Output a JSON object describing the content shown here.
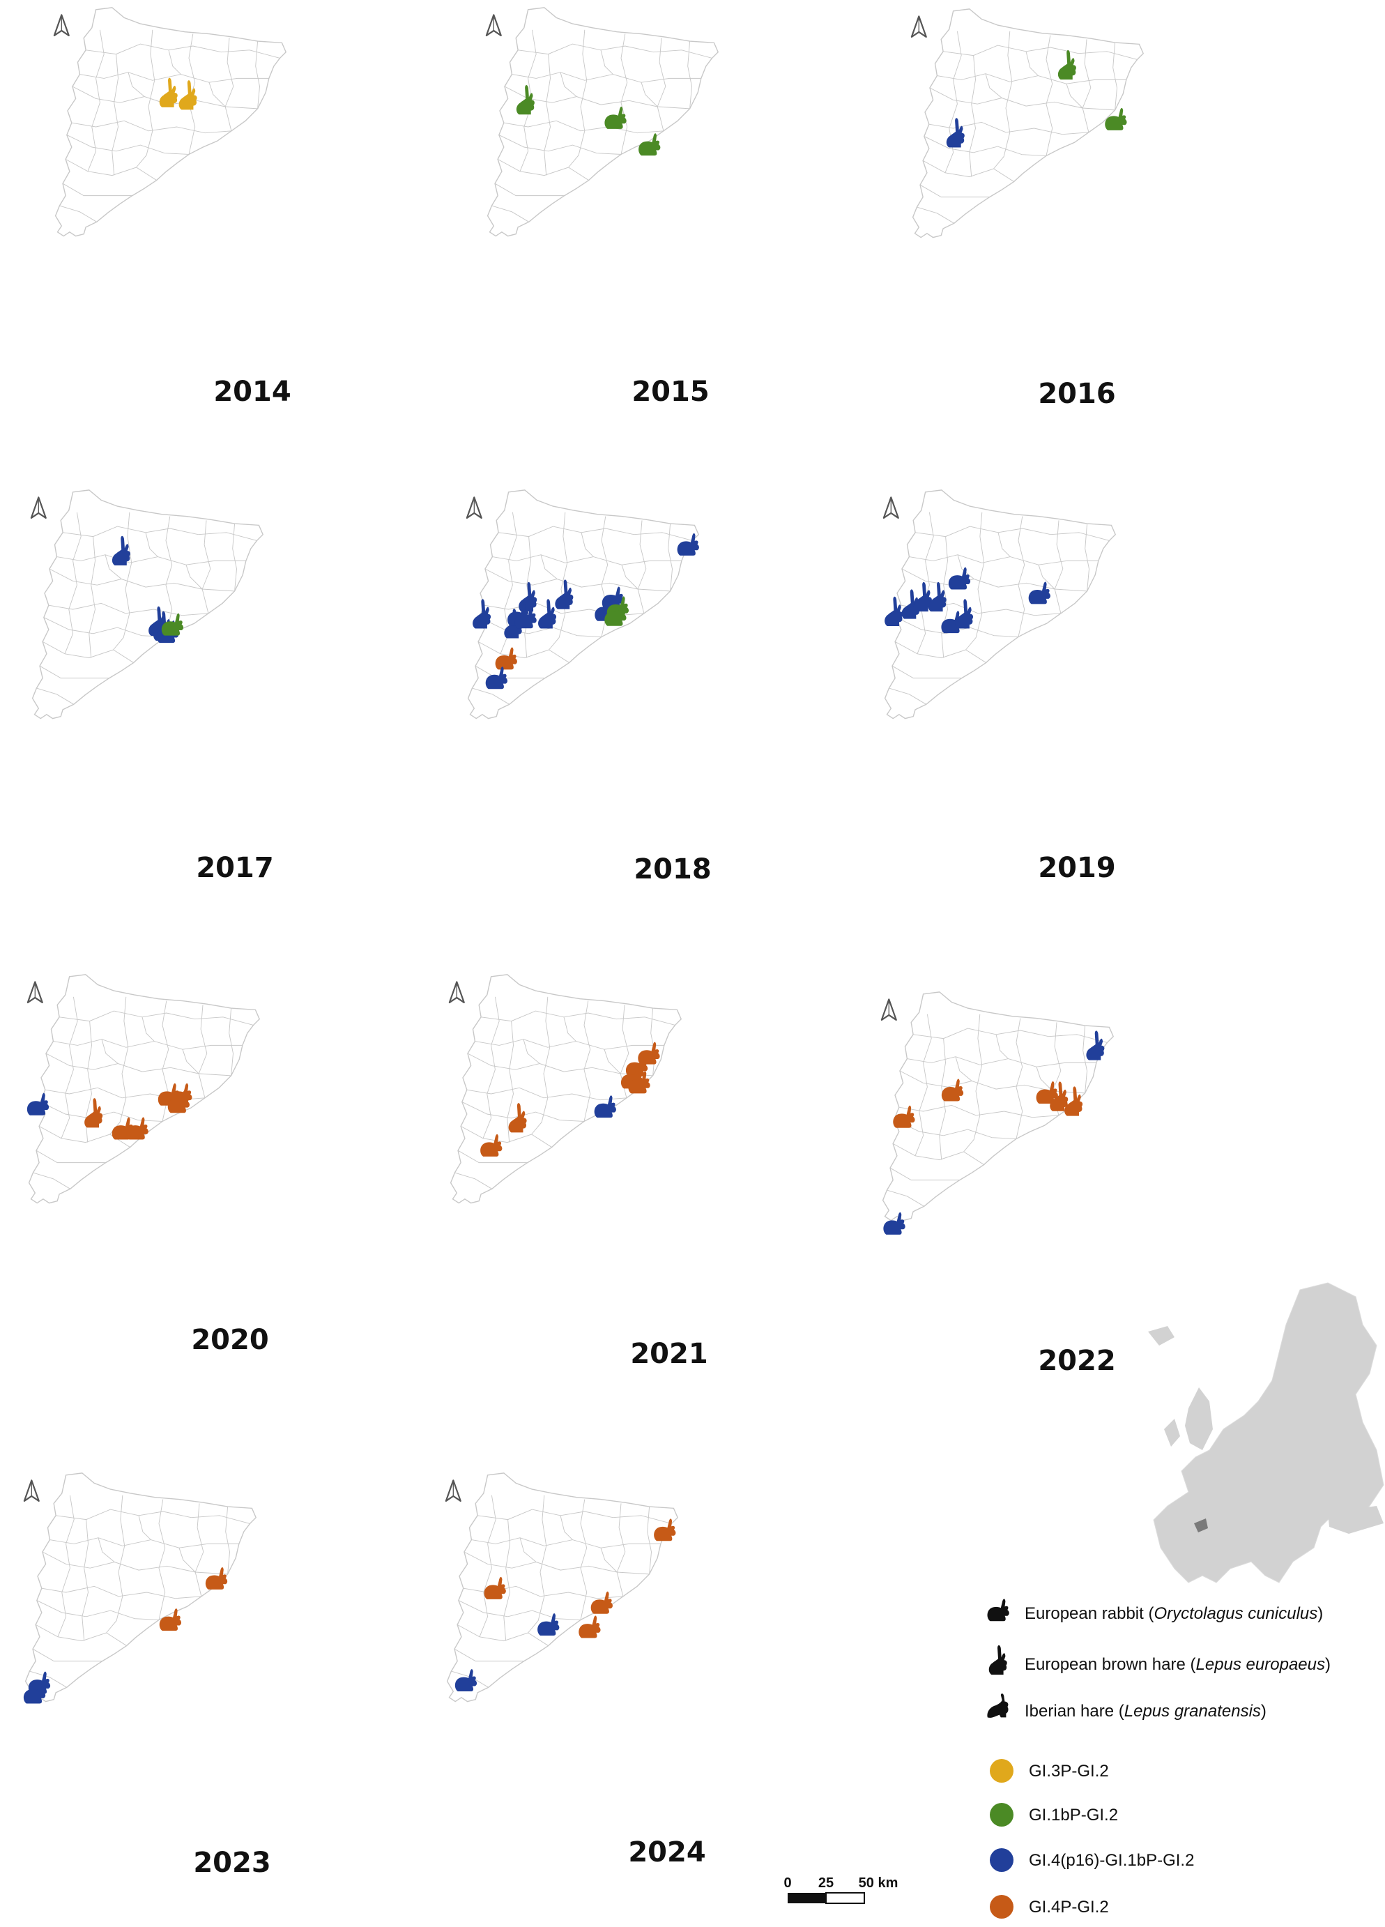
{
  "colors": {
    "yellow": "#e0a81c",
    "green": "#4b8a25",
    "blue": "#213f9a",
    "orange": "#c65a17",
    "outline": "#c8c8c8",
    "europe": "#d2d2d2",
    "highlight": "#7a7a7a"
  },
  "years": [
    "2014",
    "2015",
    "2016",
    "2017",
    "2018",
    "2019",
    "2020",
    "2021",
    "2022",
    "2023",
    "2024"
  ],
  "maps": [
    {
      "year": "2014",
      "markers": [
        {
          "fx": 0.5,
          "fy": 0.37,
          "species": "hare",
          "genotype": "yellow"
        },
        {
          "fx": 0.58,
          "fy": 0.38,
          "species": "hare",
          "genotype": "yellow"
        }
      ]
    },
    {
      "year": "2015",
      "markers": [
        {
          "fx": 0.19,
          "fy": 0.4,
          "species": "hare",
          "genotype": "green"
        },
        {
          "fx": 0.56,
          "fy": 0.47,
          "species": "rabbit",
          "genotype": "green"
        },
        {
          "fx": 0.7,
          "fy": 0.58,
          "species": "rabbit",
          "genotype": "green"
        }
      ]
    },
    {
      "year": "2016",
      "markers": [
        {
          "fx": 0.67,
          "fy": 0.25,
          "species": "hare",
          "genotype": "green"
        },
        {
          "fx": 0.87,
          "fy": 0.47,
          "species": "rabbit",
          "genotype": "green"
        },
        {
          "fx": 0.21,
          "fy": 0.53,
          "species": "hare",
          "genotype": "blue"
        }
      ]
    },
    {
      "year": "2017",
      "markers": [
        {
          "fx": 0.4,
          "fy": 0.27,
          "species": "hare",
          "genotype": "blue"
        },
        {
          "fx": 0.55,
          "fy": 0.56,
          "species": "hare",
          "genotype": "blue"
        },
        {
          "fx": 0.57,
          "fy": 0.58,
          "species": "hare",
          "genotype": "blue"
        },
        {
          "fx": 0.59,
          "fy": 0.6,
          "species": "rabbit",
          "genotype": "blue"
        },
        {
          "fx": 0.61,
          "fy": 0.57,
          "species": "rabbit",
          "genotype": "green"
        }
      ]
    },
    {
      "year": "2018",
      "markers": [
        {
          "fx": 0.94,
          "fy": 0.24,
          "species": "rabbit",
          "genotype": "blue"
        },
        {
          "fx": 0.28,
          "fy": 0.46,
          "species": "hare",
          "genotype": "blue"
        },
        {
          "fx": 0.43,
          "fy": 0.45,
          "species": "hare",
          "genotype": "blue"
        },
        {
          "fx": 0.09,
          "fy": 0.53,
          "species": "hare",
          "genotype": "blue"
        },
        {
          "fx": 0.22,
          "fy": 0.57,
          "species": "hare",
          "genotype": "blue"
        },
        {
          "fx": 0.24,
          "fy": 0.53,
          "species": "rabbit",
          "genotype": "blue"
        },
        {
          "fx": 0.27,
          "fy": 0.54,
          "species": "rabbit",
          "genotype": "blue"
        },
        {
          "fx": 0.36,
          "fy": 0.53,
          "species": "hare",
          "genotype": "blue"
        },
        {
          "fx": 0.63,
          "fy": 0.46,
          "species": "rabbit",
          "genotype": "blue"
        },
        {
          "fx": 0.6,
          "fy": 0.51,
          "species": "rabbit",
          "genotype": "blue"
        },
        {
          "fx": 0.65,
          "fy": 0.5,
          "species": "rabbit",
          "genotype": "green"
        },
        {
          "fx": 0.64,
          "fy": 0.53,
          "species": "rabbit",
          "genotype": "green"
        },
        {
          "fx": 0.19,
          "fy": 0.71,
          "species": "rabbit",
          "genotype": "orange"
        },
        {
          "fx": 0.15,
          "fy": 0.79,
          "species": "rabbit",
          "genotype": "blue"
        }
      ]
    },
    {
      "year": "2019",
      "markers": [
        {
          "fx": 0.34,
          "fy": 0.38,
          "species": "rabbit",
          "genotype": "blue"
        },
        {
          "fx": 0.67,
          "fy": 0.44,
          "species": "rabbit",
          "genotype": "blue"
        },
        {
          "fx": 0.14,
          "fy": 0.49,
          "species": "hare",
          "genotype": "blue"
        },
        {
          "fx": 0.19,
          "fy": 0.46,
          "species": "hare",
          "genotype": "blue"
        },
        {
          "fx": 0.25,
          "fy": 0.46,
          "species": "hare",
          "genotype": "blue"
        },
        {
          "fx": 0.07,
          "fy": 0.52,
          "species": "hare",
          "genotype": "blue"
        },
        {
          "fx": 0.31,
          "fy": 0.56,
          "species": "rabbit",
          "genotype": "blue"
        },
        {
          "fx": 0.36,
          "fy": 0.53,
          "species": "hare",
          "genotype": "blue"
        }
      ]
    },
    {
      "year": "2020",
      "markers": [
        {
          "fx": 0.07,
          "fy": 0.55,
          "species": "rabbit",
          "genotype": "blue"
        },
        {
          "fx": 0.3,
          "fy": 0.59,
          "species": "hare",
          "genotype": "orange"
        },
        {
          "fx": 0.42,
          "fy": 0.65,
          "species": "rabbit",
          "genotype": "orange"
        },
        {
          "fx": 0.48,
          "fy": 0.65,
          "species": "rabbit",
          "genotype": "orange"
        },
        {
          "fx": 0.61,
          "fy": 0.51,
          "species": "rabbit",
          "genotype": "orange"
        },
        {
          "fx": 0.66,
          "fy": 0.51,
          "species": "rabbit",
          "genotype": "orange"
        },
        {
          "fx": 0.65,
          "fy": 0.54,
          "species": "rabbit",
          "genotype": "orange"
        }
      ]
    },
    {
      "year": "2021",
      "markers": [
        {
          "fx": 0.85,
          "fy": 0.34,
          "species": "rabbit",
          "genotype": "orange"
        },
        {
          "fx": 0.8,
          "fy": 0.39,
          "species": "rabbit",
          "genotype": "orange"
        },
        {
          "fx": 0.78,
          "fy": 0.44,
          "species": "rabbit",
          "genotype": "orange"
        },
        {
          "fx": 0.81,
          "fy": 0.46,
          "species": "rabbit",
          "genotype": "orange"
        },
        {
          "fx": 0.67,
          "fy": 0.56,
          "species": "rabbit",
          "genotype": "blue"
        },
        {
          "fx": 0.31,
          "fy": 0.61,
          "species": "hare",
          "genotype": "orange"
        },
        {
          "fx": 0.2,
          "fy": 0.72,
          "species": "rabbit",
          "genotype": "orange"
        }
      ]
    },
    {
      "year": "2022",
      "markers": [
        {
          "fx": 0.91,
          "fy": 0.24,
          "species": "hare",
          "genotype": "blue"
        },
        {
          "fx": 0.32,
          "fy": 0.42,
          "species": "rabbit",
          "genotype": "orange"
        },
        {
          "fx": 0.71,
          "fy": 0.43,
          "species": "rabbit",
          "genotype": "orange"
        },
        {
          "fx": 0.76,
          "fy": 0.45,
          "species": "hare",
          "genotype": "orange"
        },
        {
          "fx": 0.82,
          "fy": 0.47,
          "species": "hare",
          "genotype": "orange"
        },
        {
          "fx": 0.12,
          "fy": 0.53,
          "species": "rabbit",
          "genotype": "orange"
        },
        {
          "fx": 0.08,
          "fy": 0.97,
          "species": "rabbit",
          "genotype": "blue"
        }
      ]
    },
    {
      "year": "2023",
      "markers": [
        {
          "fx": 0.82,
          "fy": 0.45,
          "species": "rabbit",
          "genotype": "orange"
        },
        {
          "fx": 0.63,
          "fy": 0.62,
          "species": "rabbit",
          "genotype": "orange"
        },
        {
          "fx": 0.09,
          "fy": 0.88,
          "species": "rabbit",
          "genotype": "blue"
        },
        {
          "fx": 0.07,
          "fy": 0.92,
          "species": "rabbit",
          "genotype": "blue"
        }
      ]
    },
    {
      "year": "2024",
      "markers": [
        {
          "fx": 0.93,
          "fy": 0.25,
          "species": "rabbit",
          "genotype": "orange"
        },
        {
          "fx": 0.23,
          "fy": 0.49,
          "species": "rabbit",
          "genotype": "orange"
        },
        {
          "fx": 0.67,
          "fy": 0.55,
          "species": "rabbit",
          "genotype": "orange"
        },
        {
          "fx": 0.45,
          "fy": 0.64,
          "species": "rabbit",
          "genotype": "blue"
        },
        {
          "fx": 0.62,
          "fy": 0.65,
          "species": "rabbit",
          "genotype": "orange"
        },
        {
          "fx": 0.11,
          "fy": 0.87,
          "species": "rabbit",
          "genotype": "blue"
        }
      ]
    }
  ],
  "legend": {
    "species": [
      {
        "icon": "rabbit-icon",
        "common": "European rabbit ",
        "latin": "Oryctolagus cuniculus"
      },
      {
        "icon": "hare-icon",
        "common": "European brown hare ",
        "latin": "Lepus europaeus"
      },
      {
        "icon": "iberian-hare-icon",
        "common": "Iberian hare ",
        "latin": "Lepus granatensis"
      }
    ],
    "genotypes": [
      {
        "key": "yellow",
        "label": "GI.3P-GI.2"
      },
      {
        "key": "green",
        "label": "GI.1bP-GI.2"
      },
      {
        "key": "blue",
        "label": "GI.4(p16)-GI.1bP-GI.2"
      },
      {
        "key": "orange",
        "label": "GI.4P-GI.2"
      }
    ]
  },
  "scale_bar": {
    "ticks": [
      "0",
      "25",
      "50 km"
    ]
  },
  "inset": {
    "icon": "europe-locator-map"
  }
}
